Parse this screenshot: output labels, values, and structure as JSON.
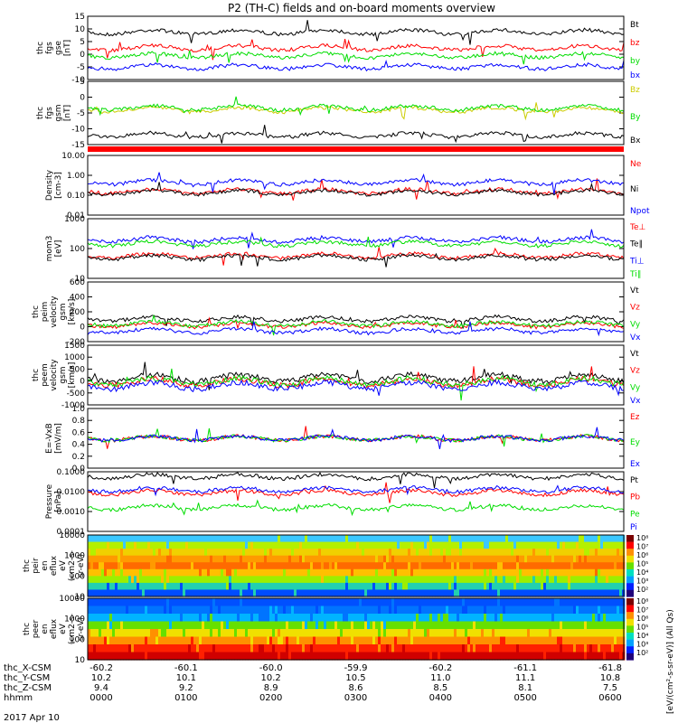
{
  "title": "P2 (TH-C) fields and on-board moments overview",
  "colors": {
    "black": "#000000",
    "red": "#ff0000",
    "green": "#00dd00",
    "blue": "#0000ff",
    "yellow": "#cccc00"
  },
  "chart_data": [
    {
      "type": "line",
      "panel": "fgs_gse",
      "ylabel": [
        "thc",
        "fgs",
        "gse",
        "[nT]"
      ],
      "yticks": [
        "15",
        "10",
        "5",
        "0",
        "-5",
        "-10"
      ],
      "ylim": [
        -10,
        15
      ],
      "series": [
        {
          "name": "Bt",
          "color": "black",
          "level": 8
        },
        {
          "name": "bz",
          "color": "red",
          "level": 2
        },
        {
          "name": "by",
          "color": "green",
          "level": 0
        },
        {
          "name": "bx",
          "color": "blue",
          "level": -5
        }
      ]
    },
    {
      "type": "line",
      "panel": "fgs_gsm",
      "ylabel": [
        "thc",
        "fgs",
        "gsm",
        "[nT]"
      ],
      "yticks": [
        "5",
        "0",
        "-5",
        "-10",
        "-15"
      ],
      "ylim": [
        -17,
        9
      ],
      "series": [
        {
          "name": "Bz",
          "color": "yellow",
          "level": 1
        },
        {
          "name": "By",
          "color": "green",
          "level": 2
        },
        {
          "name": "Bx",
          "color": "black",
          "level": -12
        }
      ]
    },
    {
      "type": "line",
      "panel": "density",
      "ylabel": [
        "Density",
        "[cm-3]"
      ],
      "log": true,
      "yticks": [
        "10.00",
        "1.00",
        "0.10",
        "0.01"
      ],
      "series": [
        {
          "name": "Ne",
          "color": "red"
        },
        {
          "name": "Ni",
          "color": "black"
        },
        {
          "name": "Npot",
          "color": "blue"
        }
      ]
    },
    {
      "type": "line",
      "panel": "temperature",
      "ylabel": [
        "mom3",
        "[eV]"
      ],
      "log": true,
      "yticks": [
        "1000",
        "100",
        "10"
      ],
      "series": [
        {
          "name": "Te⊥",
          "color": "red"
        },
        {
          "name": "Te∥",
          "color": "black"
        },
        {
          "name": "Ti⊥",
          "color": "blue"
        },
        {
          "name": "Ti∥",
          "color": "green"
        }
      ]
    },
    {
      "type": "line",
      "panel": "peim_velocity",
      "ylabel": [
        "thc",
        "peim",
        "velocity",
        "gsm",
        "[km/s]"
      ],
      "yticks": [
        "600",
        "400",
        "200",
        "0",
        "-200"
      ],
      "ylim": [
        -200,
        600
      ],
      "series": [
        {
          "name": "Vt",
          "color": "black"
        },
        {
          "name": "Vz",
          "color": "red"
        },
        {
          "name": "Vy",
          "color": "green"
        },
        {
          "name": "Vx",
          "color": "blue"
        }
      ]
    },
    {
      "type": "line",
      "panel": "peem_velocity",
      "ylabel": [
        "thc",
        "peem",
        "velocity",
        "gsm",
        "[km/s]"
      ],
      "yticks": [
        "1500",
        "1000",
        "500",
        "0",
        "-500",
        "-1000"
      ],
      "ylim": [
        -1000,
        1500
      ],
      "series": [
        {
          "name": "Vt",
          "color": "black"
        },
        {
          "name": "Vz",
          "color": "red"
        },
        {
          "name": "Vy",
          "color": "green"
        },
        {
          "name": "Vx",
          "color": "blue"
        }
      ]
    },
    {
      "type": "line",
      "panel": "efield",
      "ylabel": [
        "E=-VxB",
        "[mV/m]"
      ],
      "yticks": [
        "1.0",
        "0.8",
        "0.6",
        "0.4",
        "0.2",
        "0.0"
      ],
      "ylim": [
        0,
        1
      ],
      "series": [
        {
          "name": "Ez",
          "color": "red"
        },
        {
          "name": "Ey",
          "color": "green"
        },
        {
          "name": "Ex",
          "color": "blue"
        }
      ]
    },
    {
      "type": "line",
      "panel": "pressure",
      "ylabel": [
        "Pressure",
        "[nPa]"
      ],
      "log": true,
      "yticks": [
        "0.1000",
        "0.0100",
        "0.0010",
        "0.0001"
      ],
      "series": [
        {
          "name": "Pt",
          "color": "black"
        },
        {
          "name": "Pb",
          "color": "red"
        },
        {
          "name": "Pe",
          "color": "green"
        },
        {
          "name": "Pi",
          "color": "blue"
        }
      ]
    },
    {
      "type": "heatmap",
      "panel": "peir_eflux",
      "ylabel": [
        "thc",
        "peir",
        "en",
        "eflux",
        "eV",
        "(cm2-s-",
        "sr-eV)"
      ],
      "yticks": [
        "10000",
        "1000",
        "100",
        "10"
      ]
    },
    {
      "type": "heatmap",
      "panel": "peer_eflux",
      "ylabel": [
        "thc",
        "peer",
        "en",
        "eflux",
        "eV",
        "(cm2-s-",
        "sr-eV)"
      ],
      "yticks": [
        "10000",
        "1000",
        "100",
        "10"
      ]
    }
  ],
  "colorbar": {
    "ticks": [
      "10⁸",
      "10⁷",
      "10⁶",
      "10⁵",
      "10⁴",
      "10³",
      "10²"
    ],
    "label": "[eV/(cm²-s-sr-eV)] (All Qs)"
  },
  "xaxis": {
    "rows": [
      {
        "label": "thc_X-CSM",
        "values": [
          "-60.2",
          "-60.1",
          "-60.0",
          "-59.9",
          "-60.2",
          "-61.1",
          "-61.8"
        ]
      },
      {
        "label": "thc_Y-CSM",
        "values": [
          "10.2",
          "10.1",
          "10.2",
          "10.5",
          "11.0",
          "11.1",
          "10.8"
        ]
      },
      {
        "label": "thc_Z-CSM",
        "values": [
          "9.4",
          "9.2",
          "8.9",
          "8.6",
          "8.5",
          "8.1",
          "7.5"
        ]
      },
      {
        "label": "hhmm",
        "values": [
          "0000",
          "0100",
          "0200",
          "0300",
          "0400",
          "0500",
          "0600"
        ]
      }
    ],
    "date": "2017 Apr 10"
  }
}
